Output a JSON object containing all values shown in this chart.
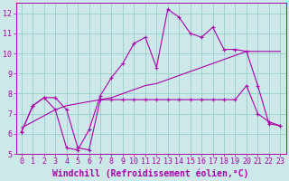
{
  "xlabel": "Windchill (Refroidissement éolien,°C)",
  "background_color": "#cce8e8",
  "grid_color": "#99cccc",
  "line_color": "#aa00aa",
  "xlim": [
    -0.5,
    23.5
  ],
  "ylim": [
    5,
    12.5
  ],
  "yticks": [
    5,
    6,
    7,
    8,
    9,
    10,
    11,
    12
  ],
  "xticks": [
    0,
    1,
    2,
    3,
    4,
    5,
    6,
    7,
    8,
    9,
    10,
    11,
    12,
    13,
    14,
    15,
    16,
    17,
    18,
    19,
    20,
    21,
    22,
    23
  ],
  "line1_x": [
    0,
    1,
    2,
    3,
    4,
    5,
    6,
    7,
    8,
    9,
    10,
    11,
    12,
    13,
    14,
    15,
    16,
    17,
    18,
    19,
    20,
    21,
    22,
    23
  ],
  "line1_y": [
    6.1,
    7.4,
    7.8,
    7.2,
    5.3,
    5.2,
    6.2,
    7.9,
    8.8,
    9.5,
    10.5,
    10.8,
    9.3,
    12.2,
    11.8,
    11.0,
    10.8,
    11.3,
    10.2,
    10.2,
    10.1,
    8.4,
    6.5,
    6.4
  ],
  "line2_x": [
    0,
    1,
    2,
    3,
    4,
    5,
    6,
    7,
    8,
    9,
    10,
    11,
    12,
    13,
    14,
    15,
    16,
    17,
    18,
    19,
    20,
    21,
    22,
    23
  ],
  "line2_y": [
    6.3,
    6.6,
    6.9,
    7.2,
    7.4,
    7.5,
    7.6,
    7.7,
    7.8,
    8.0,
    8.2,
    8.4,
    8.5,
    8.7,
    8.9,
    9.1,
    9.3,
    9.5,
    9.7,
    9.9,
    10.1,
    10.1,
    10.1,
    10.1
  ],
  "line3_x": [
    0,
    1,
    2,
    3,
    4,
    5,
    6,
    7,
    8,
    9,
    10,
    11,
    12,
    13,
    14,
    15,
    16,
    17,
    18,
    19,
    20,
    21,
    22,
    23
  ],
  "line3_y": [
    6.1,
    7.4,
    7.8,
    7.8,
    7.2,
    5.3,
    5.2,
    7.7,
    7.7,
    7.7,
    7.7,
    7.7,
    7.7,
    7.7,
    7.7,
    7.7,
    7.7,
    7.7,
    7.7,
    7.7,
    8.4,
    7.0,
    6.6,
    6.4
  ],
  "tick_fontsize": 6,
  "label_fontsize": 7,
  "figsize": [
    3.2,
    2.0
  ],
  "dpi": 100
}
